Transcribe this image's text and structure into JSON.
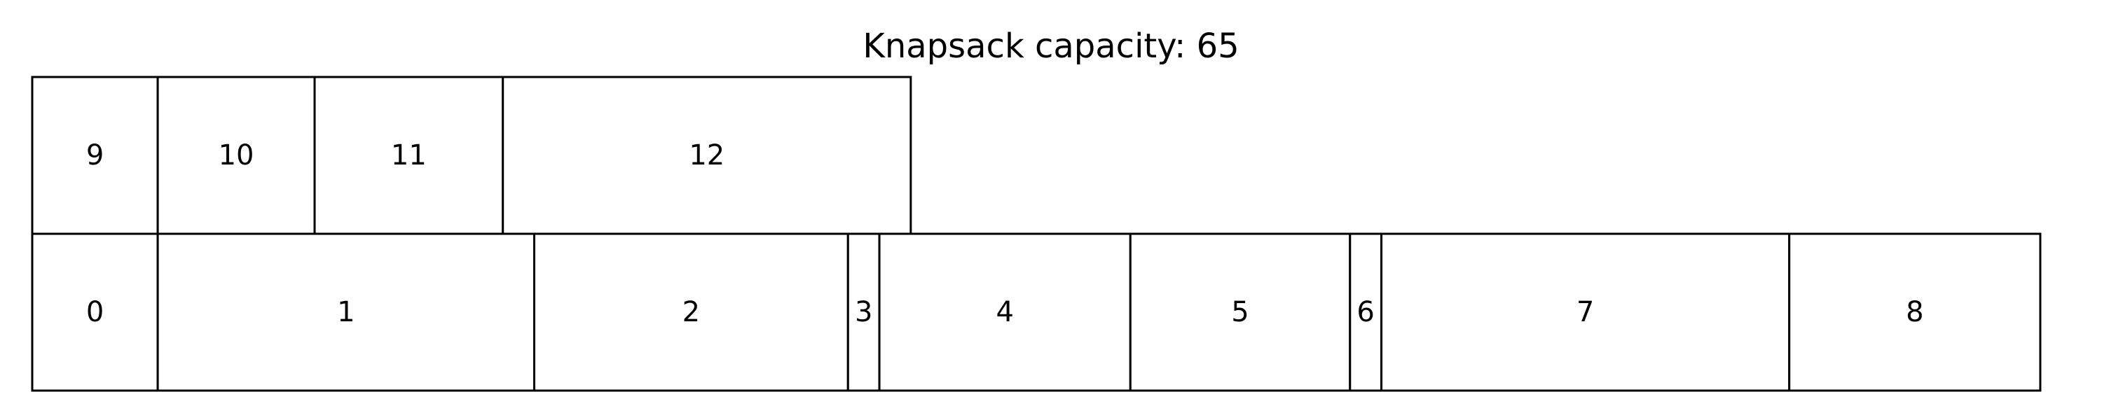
{
  "title": "Knapsack capacity: 65",
  "capacity": 65,
  "items": [
    {
      "label": "0",
      "size": 4
    },
    {
      "label": "1",
      "size": 12
    },
    {
      "label": "2",
      "size": 10
    },
    {
      "label": "3",
      "size": 1
    },
    {
      "label": "4",
      "size": 8
    },
    {
      "label": "5",
      "size": 7
    },
    {
      "label": "6",
      "size": 1
    },
    {
      "label": "7",
      "size": 13
    },
    {
      "label": "8",
      "size": 8
    },
    {
      "label": "9",
      "size": 4
    },
    {
      "label": "10",
      "size": 5
    },
    {
      "label": "11",
      "size": 6
    },
    {
      "label": "12",
      "size": 13
    }
  ],
  "rows": [
    [
      "0",
      "1",
      "2",
      "3",
      "4",
      "5",
      "6",
      "7",
      "8"
    ],
    [
      "9",
      "10",
      "11",
      "12"
    ]
  ],
  "colors": {
    "stroke": "#000000",
    "fill": "#ffffff",
    "text": "#000000"
  }
}
